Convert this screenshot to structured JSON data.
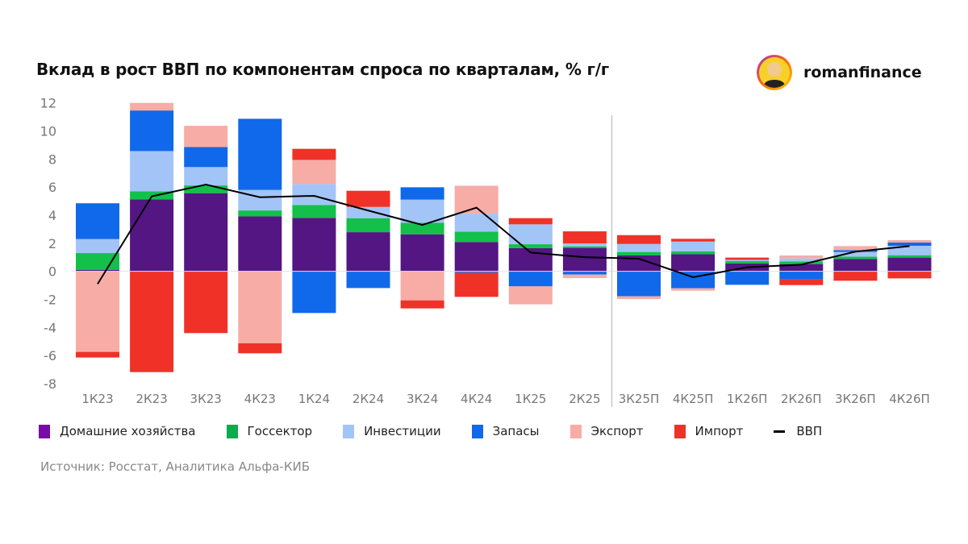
{
  "title": "Вклад в рост ВВП по компонентам спроса по кварталам, % г/г",
  "brand": {
    "name": "romanfinance"
  },
  "source": "Источник: Росстат, Аналитика Альфа-КИБ",
  "chart_data": {
    "type": "bar",
    "stacked": true,
    "title": "Вклад в рост ВВП по компонентам спроса по кварталам, % г/г",
    "categories": [
      "1К23",
      "2К23",
      "3К23",
      "4К23",
      "1К24",
      "2К24",
      "3К24",
      "4К24",
      "1К25",
      "2К25",
      "3К25П",
      "4К25П",
      "1К26П",
      "2К26П",
      "3К26П",
      "4К26П"
    ],
    "yticks": [
      "12",
      "10",
      "8",
      "6",
      "4",
      "2",
      "0",
      "-2",
      "-4",
      "-6",
      "-8"
    ],
    "ylim": [
      -8,
      12
    ],
    "grid": false,
    "legend_position": "bottom",
    "forecast_divider_after": "2К25",
    "series": [
      {
        "name": "Домашние хозяйства",
        "color": "#541683",
        "legend_color": "#7a0aa8",
        "values": [
          0.1,
          5.13,
          5.57,
          3.92,
          3.81,
          2.79,
          2.64,
          2.09,
          1.65,
          1.67,
          1.13,
          1.22,
          0.56,
          0.52,
          0.88,
          0.98
        ]
      },
      {
        "name": "Госсектор",
        "color": "#12c04a",
        "legend_color": "#0aad4a",
        "values": [
          1.2,
          0.57,
          0.55,
          0.42,
          0.92,
          1.0,
          0.82,
          0.74,
          0.28,
          0.11,
          0.25,
          0.2,
          0.17,
          0.19,
          0.17,
          0.17
        ]
      },
      {
        "name": "Инвестиции",
        "color": "#a3c4f7",
        "legend_color": "#a3c4f7",
        "values": [
          1.0,
          2.87,
          1.31,
          1.46,
          1.49,
          0.8,
          1.65,
          1.28,
          1.42,
          0.21,
          0.57,
          0.7,
          0.09,
          0.21,
          0.33,
          0.67
        ]
      },
      {
        "name": "Запасы",
        "color": "#1069ea",
        "legend_color": "#1069ea",
        "values": [
          2.55,
          2.89,
          1.43,
          5.07,
          -2.97,
          -1.19,
          0.88,
          -0.1,
          -1.07,
          -0.23,
          -1.78,
          -1.21,
          -0.96,
          -0.57,
          0.13,
          0.23
        ]
      },
      {
        "name": "Экспорт",
        "color": "#f7aca6",
        "legend_color": "#f7aca6",
        "values": [
          -5.74,
          0.54,
          1.51,
          -5.13,
          1.72,
          0,
          -2.07,
          1.99,
          -1.28,
          -0.25,
          -0.19,
          -0.17,
          0,
          0.21,
          0.29,
          0.17
        ]
      },
      {
        "name": "Импорт",
        "color": "#f03127",
        "legend_color": "#f03127",
        "values": [
          -0.4,
          -7.18,
          -4.4,
          -0.71,
          0.79,
          1.15,
          -0.57,
          -1.72,
          0.44,
          0.86,
          0.63,
          0.2,
          0.16,
          -0.41,
          -0.67,
          -0.5
        ]
      }
    ],
    "line": {
      "name": "ВВП",
      "color": "#000000",
      "values": [
        -0.9,
        5.34,
        6.18,
        5.28,
        5.38,
        4.33,
        3.31,
        4.54,
        1.34,
        1.01,
        0.9,
        -0.42,
        0.29,
        0.48,
        1.4,
        1.8
      ]
    }
  }
}
